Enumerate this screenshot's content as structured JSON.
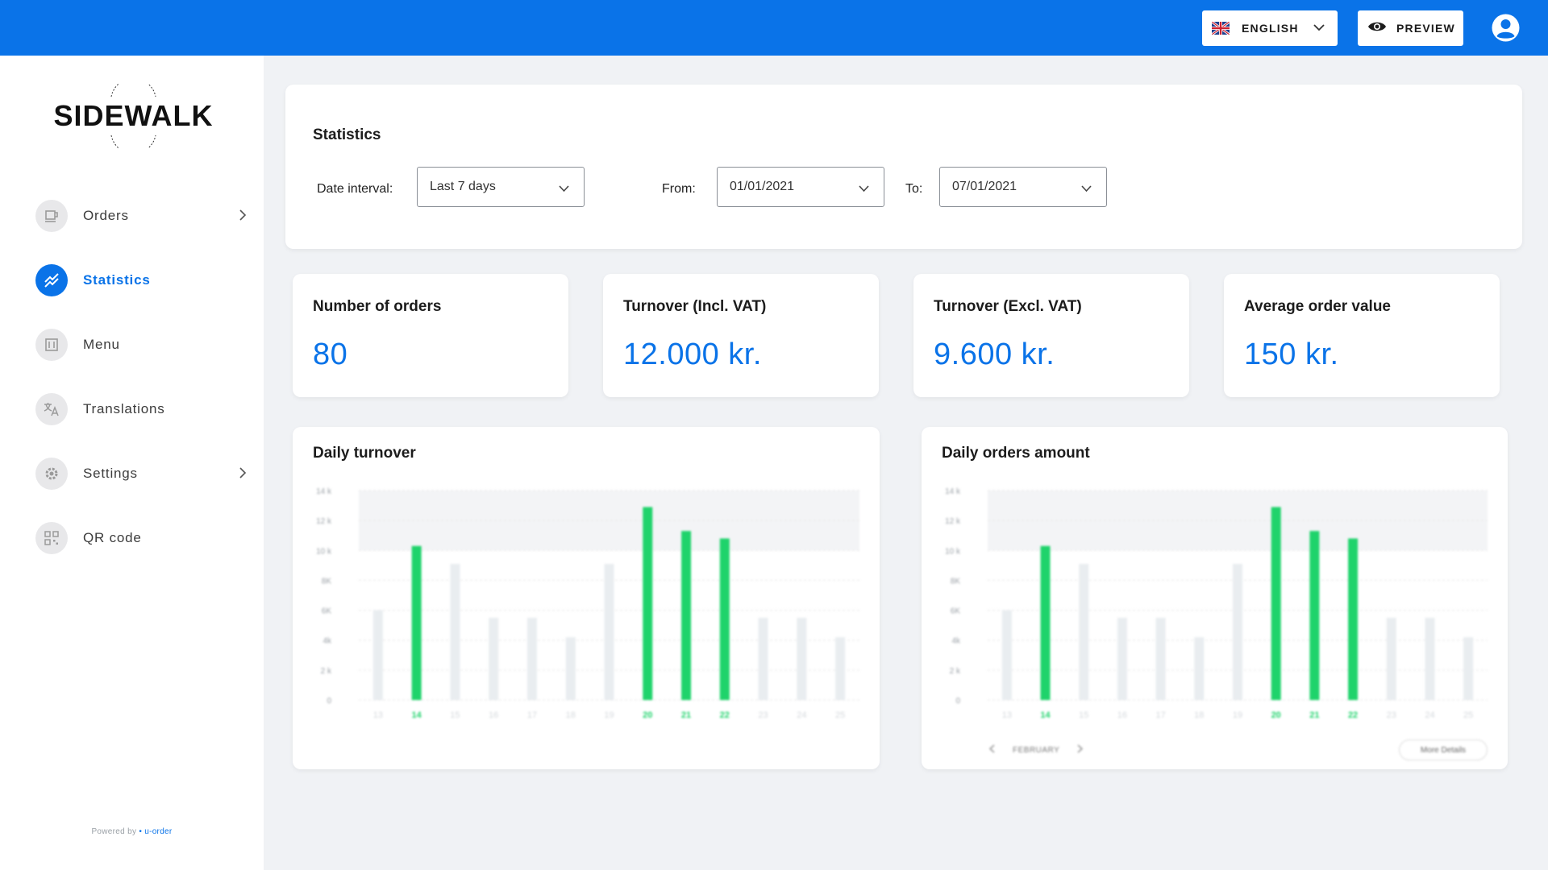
{
  "header": {
    "language_label": "ENGLISH",
    "preview_label": "PREVIEW",
    "icons": [
      "uk-flag-icon",
      "chevron-down-icon",
      "eye-icon",
      "account-circle-icon"
    ]
  },
  "sidebar": {
    "logo_text": "SIDEWALK",
    "items": [
      {
        "label": "Orders",
        "icon": "cup-icon",
        "has_submenu": true,
        "active": false
      },
      {
        "label": "Statistics",
        "icon": "trend-chart-icon",
        "has_submenu": false,
        "active": true
      },
      {
        "label": "Menu",
        "icon": "menu-book-icon",
        "has_submenu": false,
        "active": false
      },
      {
        "label": "Translations",
        "icon": "translate-icon",
        "has_submenu": false,
        "active": false
      },
      {
        "label": "Settings",
        "icon": "gear-icon",
        "has_submenu": true,
        "active": false
      },
      {
        "label": "QR code",
        "icon": "qr-code-icon",
        "has_submenu": false,
        "active": false
      }
    ],
    "powered_by": "Powered by ",
    "powered_brand": "• u-order"
  },
  "filters": {
    "title": "Statistics",
    "date_interval_label": "Date interval:",
    "date_interval_value": "Last 7 days",
    "from_label": "From:",
    "from_value": "01/01/2021",
    "to_label": "To:",
    "to_value": "07/01/2021"
  },
  "stats": [
    {
      "title": "Number of orders",
      "value": "80"
    },
    {
      "title": "Turnover (Incl. VAT)",
      "value": "12.000 kr."
    },
    {
      "title": "Turnover (Excl. VAT)",
      "value": "9.600 kr."
    },
    {
      "title": "Average order value",
      "value": "150 kr."
    }
  ],
  "colors": {
    "accent": "#0a73e8",
    "highlight_bar": "#1fd36b",
    "muted_bar": "#e9edf0",
    "background": "#f0f2f5"
  },
  "chart_data": [
    {
      "type": "bar",
      "title": "Daily turnover",
      "categories": [
        "13",
        "14",
        "15",
        "16",
        "17",
        "18",
        "19",
        "20",
        "21",
        "22",
        "23",
        "24",
        "25"
      ],
      "series": [
        {
          "values": [
            6000,
            10300,
            9100,
            5500,
            5500,
            4200,
            9100,
            12900,
            11300,
            10800,
            5500,
            5500,
            4200
          ]
        }
      ],
      "highlighted": [
        "14",
        "20",
        "21",
        "22"
      ],
      "yticks": [
        "0",
        "2 k",
        "4k",
        "6K",
        "8K",
        "10 k",
        "12 k",
        "14 k"
      ],
      "ylim": [
        0,
        14000
      ],
      "grid": true
    },
    {
      "type": "bar",
      "title": "Daily orders amount",
      "categories": [
        "13",
        "14",
        "15",
        "16",
        "17",
        "18",
        "19",
        "20",
        "21",
        "22",
        "23",
        "24",
        "25"
      ],
      "series": [
        {
          "values": [
            6000,
            10300,
            9100,
            5500,
            5500,
            4200,
            9100,
            12900,
            11300,
            10800,
            5500,
            5500,
            4200
          ]
        }
      ],
      "highlighted": [
        "14",
        "20",
        "21",
        "22"
      ],
      "yticks": [
        "0",
        "2 k",
        "4k",
        "6K",
        "8K",
        "10 k",
        "12 k",
        "14 k"
      ],
      "ylim": [
        0,
        14000
      ],
      "grid": true,
      "footer_month": "FEBRUARY",
      "footer_button": "More Details"
    }
  ]
}
